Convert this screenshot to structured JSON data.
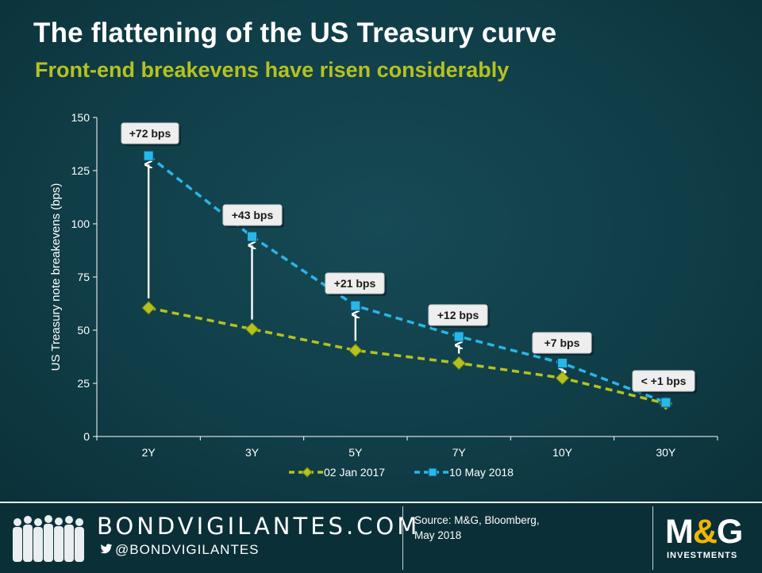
{
  "title": "The flattening of the US Treasury curve",
  "subtitle": "Front-end breakevens have risen considerably",
  "chart_data": {
    "type": "line",
    "categories": [
      "2Y",
      "3Y",
      "5Y",
      "7Y",
      "10Y",
      "30Y"
    ],
    "series": [
      {
        "name": "02 Jan 2017",
        "values": [
          60.5,
          50.5,
          40.5,
          34.5,
          27.5,
          15.5
        ],
        "color": "#b5c21e",
        "marker": "diamond"
      },
      {
        "name": "10 May 2018",
        "values": [
          132,
          94,
          61.5,
          47,
          34.5,
          16
        ],
        "color": "#29b6e8",
        "marker": "square"
      }
    ],
    "annotations": [
      "+72 bps",
      "+43 bps",
      "+21 bps",
      "+12 bps",
      "+7 bps",
      "< +1 bps"
    ],
    "ylabel": "US Treasury note breakevens (bps)",
    "xlabel": "",
    "ylim": [
      0,
      150
    ],
    "yticks": [
      0,
      25,
      50,
      75,
      100,
      125,
      150
    ],
    "grid": false,
    "legend": "bottom"
  },
  "footer": {
    "brand": "BONDVIGILANTES.COM",
    "handle": "@BONDVIGILANTES",
    "source_line1": "Source: M&G,  Bloomberg,",
    "source_line2": "May 2018",
    "logo_text": "M&G",
    "logo_sub": "INVESTMENTS"
  },
  "colors": {
    "background": "#103e48",
    "accent_green": "#b5c21e",
    "accent_blue": "#29b6e8",
    "logo_ampersand": "#f2b600"
  },
  "icons": {
    "twitter": "twitter-bird-icon",
    "people": "people-silhouette-icon"
  }
}
